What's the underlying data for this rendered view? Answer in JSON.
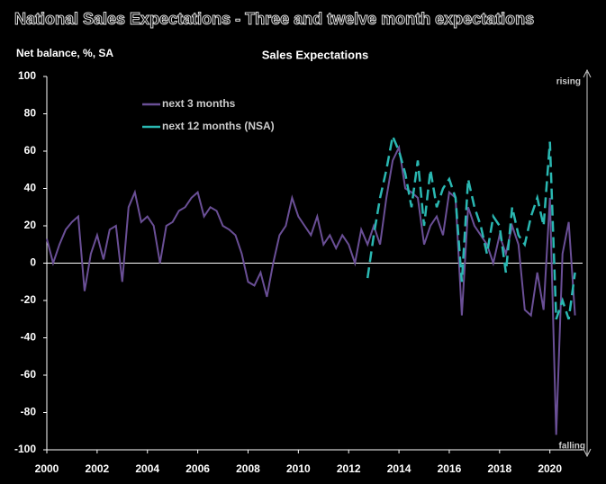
{
  "chart_data": {
    "type": "line",
    "title": "National Sales Expectations - Three and twelve month expectations",
    "subtitle": "Sales Expectations",
    "y_label": "Net balance, %, SA",
    "annotations": [
      "rising",
      "falling"
    ],
    "x": [
      2000,
      2000.25,
      2000.5,
      2000.75,
      2001,
      2001.25,
      2001.5,
      2001.75,
      2002,
      2002.25,
      2002.5,
      2002.75,
      2003,
      2003.25,
      2003.5,
      2003.75,
      2004,
      2004.25,
      2004.5,
      2004.75,
      2005,
      2005.25,
      2005.5,
      2005.75,
      2006,
      2006.25,
      2006.5,
      2006.75,
      2007,
      2007.25,
      2007.5,
      2007.75,
      2008,
      2008.25,
      2008.5,
      2008.75,
      2009,
      2009.25,
      2009.5,
      2009.75,
      2010,
      2010.25,
      2010.5,
      2010.75,
      2011,
      2011.25,
      2011.5,
      2011.75,
      2012,
      2012.25,
      2012.5,
      2012.75,
      2013,
      2013.25,
      2013.5,
      2013.75,
      2014,
      2014.25,
      2014.5,
      2014.75,
      2015,
      2015.25,
      2015.5,
      2015.75,
      2016,
      2016.25,
      2016.5,
      2016.75,
      2017,
      2017.25,
      2017.5,
      2017.75,
      2018,
      2018.25,
      2018.5,
      2018.75,
      2019,
      2019.25,
      2019.5,
      2019.75,
      2020,
      2020.25,
      2020.5,
      2020.75,
      2021
    ],
    "series": [
      {
        "name": "next 3 months",
        "color": "#6a4f96",
        "dash": false,
        "values": [
          13,
          0,
          10,
          18,
          22,
          25,
          -15,
          5,
          15,
          2,
          18,
          20,
          -10,
          30,
          38,
          22,
          25,
          20,
          0,
          20,
          22,
          28,
          30,
          35,
          38,
          25,
          30,
          28,
          20,
          18,
          15,
          5,
          -10,
          -12,
          -5,
          -18,
          0,
          15,
          20,
          35,
          25,
          20,
          15,
          25,
          10,
          15,
          8,
          15,
          10,
          0,
          18,
          10,
          20,
          10,
          35,
          55,
          62,
          40,
          38,
          35,
          10,
          20,
          25,
          15,
          38,
          35,
          -28,
          30,
          20,
          15,
          10,
          0,
          15,
          5,
          20,
          10,
          -25,
          -28,
          -5,
          -25,
          35,
          -92,
          5,
          22,
          -28
        ]
      },
      {
        "name": "next 12 months (NSA)",
        "color": "#2ab8b2",
        "dash": true,
        "values": [
          null,
          null,
          null,
          null,
          null,
          null,
          null,
          null,
          null,
          null,
          null,
          null,
          null,
          null,
          null,
          null,
          null,
          null,
          null,
          null,
          null,
          null,
          null,
          null,
          null,
          null,
          null,
          null,
          null,
          null,
          null,
          null,
          null,
          null,
          null,
          null,
          null,
          null,
          null,
          null,
          null,
          null,
          null,
          null,
          null,
          null,
          null,
          null,
          null,
          null,
          null,
          -8,
          15,
          35,
          50,
          68,
          60,
          48,
          30,
          55,
          20,
          50,
          30,
          40,
          45,
          35,
          -10,
          45,
          30,
          20,
          5,
          25,
          20,
          -5,
          30,
          15,
          10,
          25,
          35,
          20,
          65,
          -30,
          -20,
          -30,
          -5
        ]
      }
    ],
    "xlim": [
      2000,
      2021.3
    ],
    "xticks": [
      2000,
      2002,
      2004,
      2006,
      2008,
      2010,
      2012,
      2014,
      2016,
      2018,
      2020
    ],
    "ylim": [
      -100,
      100
    ],
    "yticks": [
      -100,
      -80,
      -60,
      -40,
      -20,
      0,
      20,
      40,
      60,
      80,
      100
    ]
  }
}
